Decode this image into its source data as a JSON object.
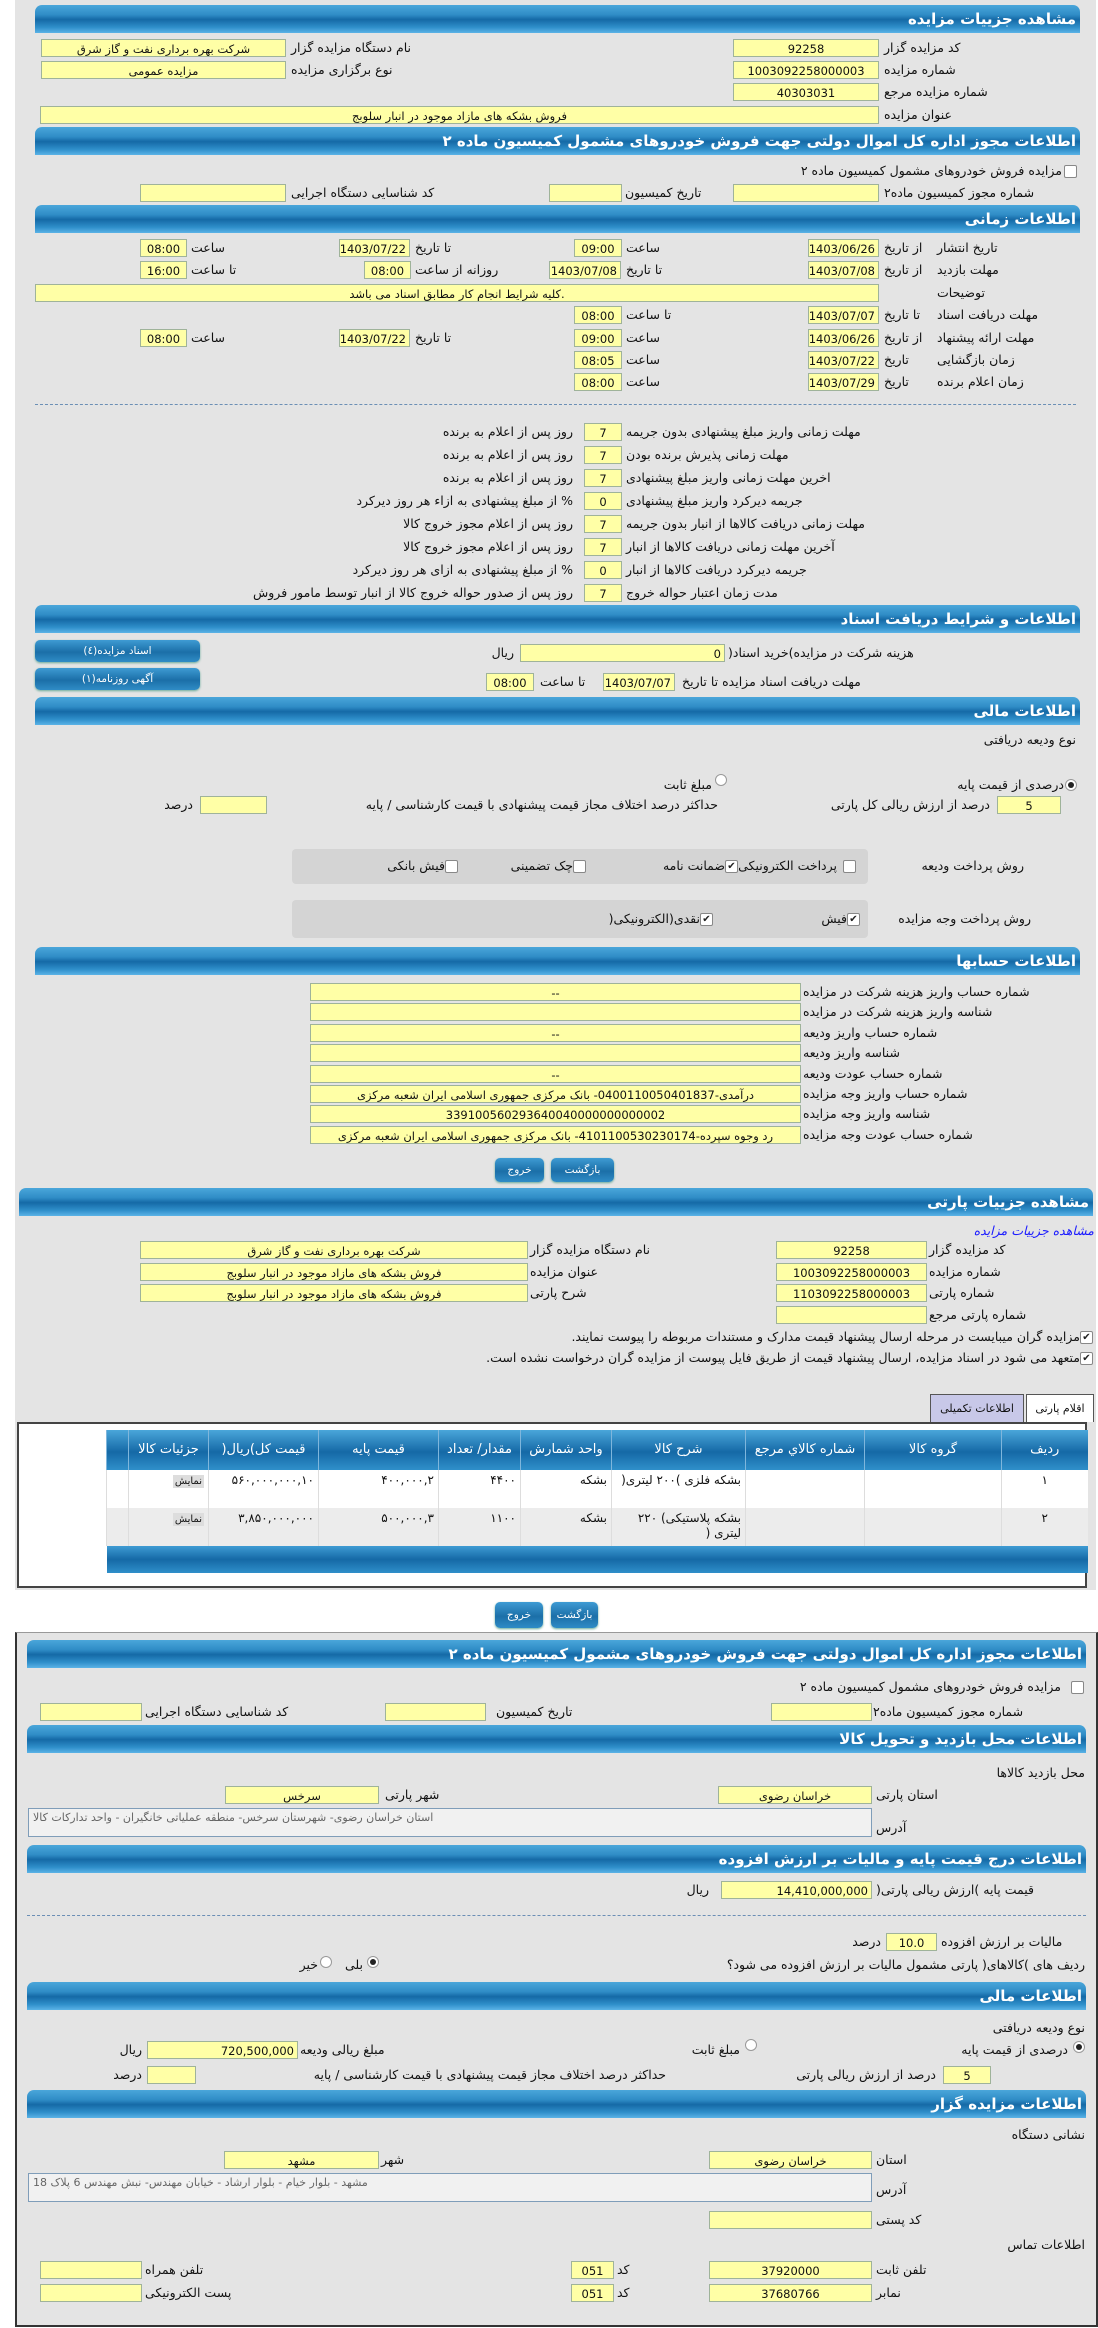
{
  "colors": {
    "header": "#1569a6",
    "field": "#ffffa6",
    "panel": "#e4e4e4",
    "tab_active": "#c8c8e8"
  },
  "auction": {
    "title": "مشاهده جزییات مزایده",
    "code_label": "کد مزایده گزار",
    "code": "92258",
    "org_label": "نام دستگاه مزایده گزار",
    "org": "شرکت بهره برداری نفت و گاز شرق",
    "number_label": "شماره مزایده",
    "number": "1003092258000003",
    "type_label": "نوع برگزاری مزایده",
    "type": "مزایده عمومی",
    "ref_label": "شماره مزایده مرجع",
    "ref": "40303031",
    "subject_label": "عنوان مزایده",
    "subject": "فروش بشکه های مازاد موجود در انبار سلوبج"
  },
  "permit": {
    "title": "اطلاعات مجوز اداره کل اموال دولتی جهت فروش خودروهای مشمول کمیسیون ماده ۲",
    "check_label": "مزایده فروش خودروهای مشمول کمیسیون ماده ۲",
    "checked": false,
    "no_label": "شماره مجوز کمیسیون ماده۲",
    "no": "",
    "date_label": "تاریخ کمیسیون",
    "date": "",
    "exec_label": "کد شناسایی دستگاه اجرایی",
    "exec": ""
  },
  "timing": {
    "title": "اطلاعات زمانی",
    "from_date": "از تاریخ",
    "to_date": "تا تاریخ",
    "date": "تاریخ",
    "hour": "ساعت",
    "to_hour": "تا ساعت",
    "daily_from": "روزانه از ساعت",
    "pub": {
      "label": "تاریخ انتشار",
      "from": "1403/06/26",
      "from_time": "09:00",
      "to": "1403/07/22",
      "to_time": "08:00"
    },
    "visit": {
      "label": "مهلت بازدید",
      "from": "1403/07/08",
      "to": "1403/07/08",
      "daily_from": "08:00",
      "daily_to": "16:00"
    },
    "notes": {
      "label": "توضیحات",
      "value": ".کلیه شرایط انجام کار مطابق اسناد می باشد"
    },
    "docs": {
      "label": "مهلت دریافت اسناد",
      "to": "1403/07/07",
      "to_time": "08:00"
    },
    "offer": {
      "label": "مهلت ارائه پیشنهاد",
      "from": "1403/06/26",
      "from_time": "09:00",
      "to": "1403/07/22",
      "to_time": "08:00"
    },
    "open": {
      "label": "زمان بازگشایی",
      "date": "1403/07/22",
      "time": "08:05"
    },
    "winner": {
      "label": "زمان اعلام برنده",
      "date": "1403/07/29",
      "time": "08:00"
    }
  },
  "rules": [
    {
      "label": "مهلت زمانی واریز مبلغ پیشنهادی بدون جریمه",
      "value": "7",
      "suffix": "روز پس از اعلام به برنده"
    },
    {
      "label": "مهلت زمانی پذیرش برنده بودن",
      "value": "7",
      "suffix": "روز پس از اعلام به برنده"
    },
    {
      "label": "اخرین مهلت زمانی واریز مبلغ پیشنهادی",
      "value": "7",
      "suffix": "روز پس از اعلام به برنده"
    },
    {
      "label": "جریمه دیرکرد واریز مبلغ پیشنهادی",
      "value": "0",
      "suffix": "% از مبلغ پیشنهادی به ازاء هر روز دیرکرد"
    },
    {
      "label": "مهلت زمانی دریافت کالاها از انبار بدون جریمه",
      "value": "7",
      "suffix": "روز پس از اعلام مجوز خروج کالا"
    },
    {
      "label": "آخرین مهلت زمانی دریافت کالاها از انبار",
      "value": "7",
      "suffix": "روز پس از اعلام مجوز خروج کالا"
    },
    {
      "label": "جریمه دیرکرد دریافت کالاها از انبار",
      "value": "0",
      "suffix": "% از مبلغ پیشنهادی به ازای هر روز دیرکرد"
    },
    {
      "label": "مدت زمان اعتبار حواله خروج",
      "value": "7",
      "suffix": "روز پس از صدور حواله خروج کالا از انبار توسط مامور فروش"
    }
  ],
  "docs": {
    "title": "اطلاعات و شرایط دریافت اسناد",
    "fee_label": "هزینه شرکت در مزایده)خرید اسناد(",
    "fee": "0",
    "rial": "ریال",
    "deadline_label": "مهلت دریافت اسناد مزایده تا تاریخ",
    "deadline": "1403/07/07",
    "to_hour": "تا ساعت",
    "deadline_time": "08:00",
    "docs_button": "اسناد مزایده(٤)",
    "ad_button": "آگهی روزنامه(١)"
  },
  "finance": {
    "title": "اطلاعات مالی",
    "deposit_type": "نوع ودیعه دریافتی",
    "opt_percent": "درصدی از قیمت پایه",
    "opt_percent_on": true,
    "opt_fixed": "مبلغ ثابت",
    "opt_fixed_on": false,
    "percent": "5",
    "percent_label": "درصد از ارزش ریالی کل پارتی",
    "max_diff_label": "حداکثر درصد اختلاف مجاز قیمت پیشنهادی با قیمت کارشناسی / پایه",
    "max_diff": "",
    "percent_unit": "درصد",
    "deposit_method_label": "روش پرداخت ودیعه",
    "deposit_methods": [
      {
        "label": "پرداخت الکترونیکی",
        "checked": false
      },
      {
        "label": "ضمانت نامه",
        "checked": true
      },
      {
        "label": "چک تضمینی",
        "checked": false
      },
      {
        "label": "فیش بانکی",
        "checked": false
      }
    ],
    "payment_method_label": "روش پرداخت وجه مزایده",
    "payment_methods": [
      {
        "label": "فیش",
        "checked": true
      },
      {
        "label": "نقدی(الکترونیکی(",
        "checked": true
      }
    ]
  },
  "accounts": {
    "title": "اطلاعات حسابها",
    "rows": [
      {
        "label": "شماره حساب واریز هزینه شرکت در مزایده",
        "value": "--"
      },
      {
        "label": "شناسه واریز هزینه شرکت در مزایده",
        "value": ""
      },
      {
        "label": "شماره حساب واریز ودیعه",
        "value": "--"
      },
      {
        "label": "شناسه واریز ودیعه",
        "value": ""
      },
      {
        "label": "شماره حساب عودت ودیعه",
        "value": "--"
      },
      {
        "label": "شماره حساب واریز وجه مزایده",
        "value": "درآمدی-0400110050401837- بانک مرکزی جمهوری اسلامی ایران شعبه مرکزی"
      },
      {
        "label": "شناسه واریز وجه مزایده",
        "value": "339100560293640040000000000002"
      },
      {
        "label": "شماره حساب عودت وجه مزایده",
        "value": "رد وجوه سپرده-4101100530230174- بانک مرکزی جمهوری اسلامی ایران شعبه مرکزی"
      }
    ]
  },
  "buttons": {
    "back": "بازگشت",
    "exit": "خروج"
  },
  "party": {
    "title": "مشاهده جزییات پارتی",
    "link": "مشاهده جزییات مزایده",
    "code_label": "کد مزایده گزار",
    "code": "92258",
    "org_label": "نام دستگاه مزایده گزار",
    "org": "شرکت بهره برداری نفت و گاز شرق",
    "number_label": "شماره مزایده",
    "number": "1003092258000003",
    "subject_label": "عنوان مزایده",
    "subject": "فروش بشکه های مازاد موجود در انبار سلوبج",
    "party_no_label": "شماره پارتی",
    "party_no": "1103092258000003",
    "desc_label": "شرح پارتی",
    "desc": "فروش بشکه های مازاد موجود در انبار سلوبج",
    "party_ref_label": "شماره پارتی مرجع",
    "party_ref": "",
    "check1": "مزایده گران میبایست در مرحله ارسال پیشنهاد قیمت مدارک و مستندات مربوطه را پیوست نمایند.",
    "check1_on": true,
    "check2": "متعهد می شود در اسناد مزایده، ارسال پیشنهاد قیمت از طریق فایل پیوست از مزایده گران درخواست نشده است.",
    "check2_on": true
  },
  "tabs": [
    {
      "label": "اقلام پارتی",
      "active": false
    },
    {
      "label": "اطلاعات تکمیلی",
      "active": true
    }
  ],
  "items": {
    "columns": [
      "ردیف",
      "گروه کالا",
      "شماره کالاي مرجع",
      "شرح کالا",
      "واحد شمارش",
      "مقدار/ تعداد",
      "قیمت پایه",
      "قیمت کل)ریال(",
      "جزئیات کالا"
    ],
    "rows": [
      [
        "١",
        "",
        "",
        "بشکه فلزی )٢٠٠ لیتری(",
        "بشکه",
        "۴۴٠٠",
        "٢,۴٠٠,٠٠٠",
        "١٠,۵۶٠,٠٠٠,٠٠٠",
        "نمایش"
      ],
      [
        "٢",
        "",
        "",
        "بشکه پلاستیکی) ٢٢٠ لیتری (",
        "بشکه",
        "١١٠٠",
        "٣,۵٠٠,٠٠٠",
        "٣,٨۵٠,٠٠٠,٠٠٠",
        "نمایش"
      ]
    ]
  },
  "permit2": {
    "title": "اطلاعات مجوز اداره کل اموال دولتی جهت فروش خودروهای مشمول کمیسیون ماده ۲",
    "check_label": "مزایده فروش خودروهای مشمول کمیسیون ماده ۲",
    "checked": false,
    "no_label": "شماره مجوز کمیسیون ماده۲",
    "date_label": "تاریخ کمیسیون",
    "exec_label": "کد شناسایی دستگاه اجرایی"
  },
  "visit": {
    "title": "اطلاعات محل بازدید و تحویل کالا",
    "place_label": "محل بازدید کالاها",
    "province_label": "استان پارتی",
    "province": "خراسان رضوی",
    "city_label": "شهر پارتی",
    "city": "سرخس",
    "address_label": "آدرس",
    "address": "استان خراسان رضوی- شهرستان سرخس- منطقه عملیاتی خانگیران - واحد تدارکات کالا"
  },
  "price": {
    "title": "اطلاعات درج قیمت پایه و مالیات بر ارزش افزوده",
    "base_label": "قیمت پایه )ارزش ریالی پارتی(",
    "base": "14,410,000,000",
    "rial": "ریال",
    "vat_label": "مالیات بر ارزش افزوده",
    "vat": "10.0",
    "percent": "درصد",
    "vat_q": "ردیف های )کالاهای( پارتی مشمول مالیات بر ارزش افزوده می شود؟",
    "yes": "بلی",
    "yes_on": true,
    "no": "خیر",
    "no_on": false
  },
  "finance2": {
    "title": "اطلاعات مالی",
    "deposit_type": "نوع ودیعه دریافتی",
    "opt_percent": "درصدی از قیمت پایه",
    "opt_percent_on": true,
    "opt_fixed": "مبلغ ثابت",
    "opt_fixed_on": false,
    "amount_label": "مبلغ ریالی ودیعه",
    "amount": "720,500,000",
    "rial": "ریال",
    "percent": "5",
    "percent_label": "درصد از ارزش ریالی پارتی",
    "max_diff_label": "حداکثر درصد اختلاف مجاز قیمت پیشنهادی با قیمت کارشناسی / پایه",
    "max_diff": "",
    "percent_unit": "درصد"
  },
  "organizer": {
    "title": "اطلاعات مزایده گزار",
    "address_title": "نشانی دستگاه",
    "province_label": "استان",
    "province": "خراسان رضوی",
    "city_label": "شهر",
    "city": "مشهد",
    "address_label": "آدرس",
    "address": "مشهد - بلوار خیام - بلوار ارشاد - خیابان مهندس- نبش مهندس 6 پلاک 18",
    "postal_label": "کد پستی",
    "postal": "",
    "contact_title": "اطلاعات تماس",
    "phone_label": "تلفن ثابت",
    "phone": "37920000",
    "code_label": "کد",
    "phone_code": "051",
    "fax_label": "نمابر",
    "fax": "37680766",
    "fax_code": "051",
    "mobile_label": "تلفن همراه",
    "mobile": "",
    "email_label": "پست الکترونیکی",
    "email": ""
  }
}
